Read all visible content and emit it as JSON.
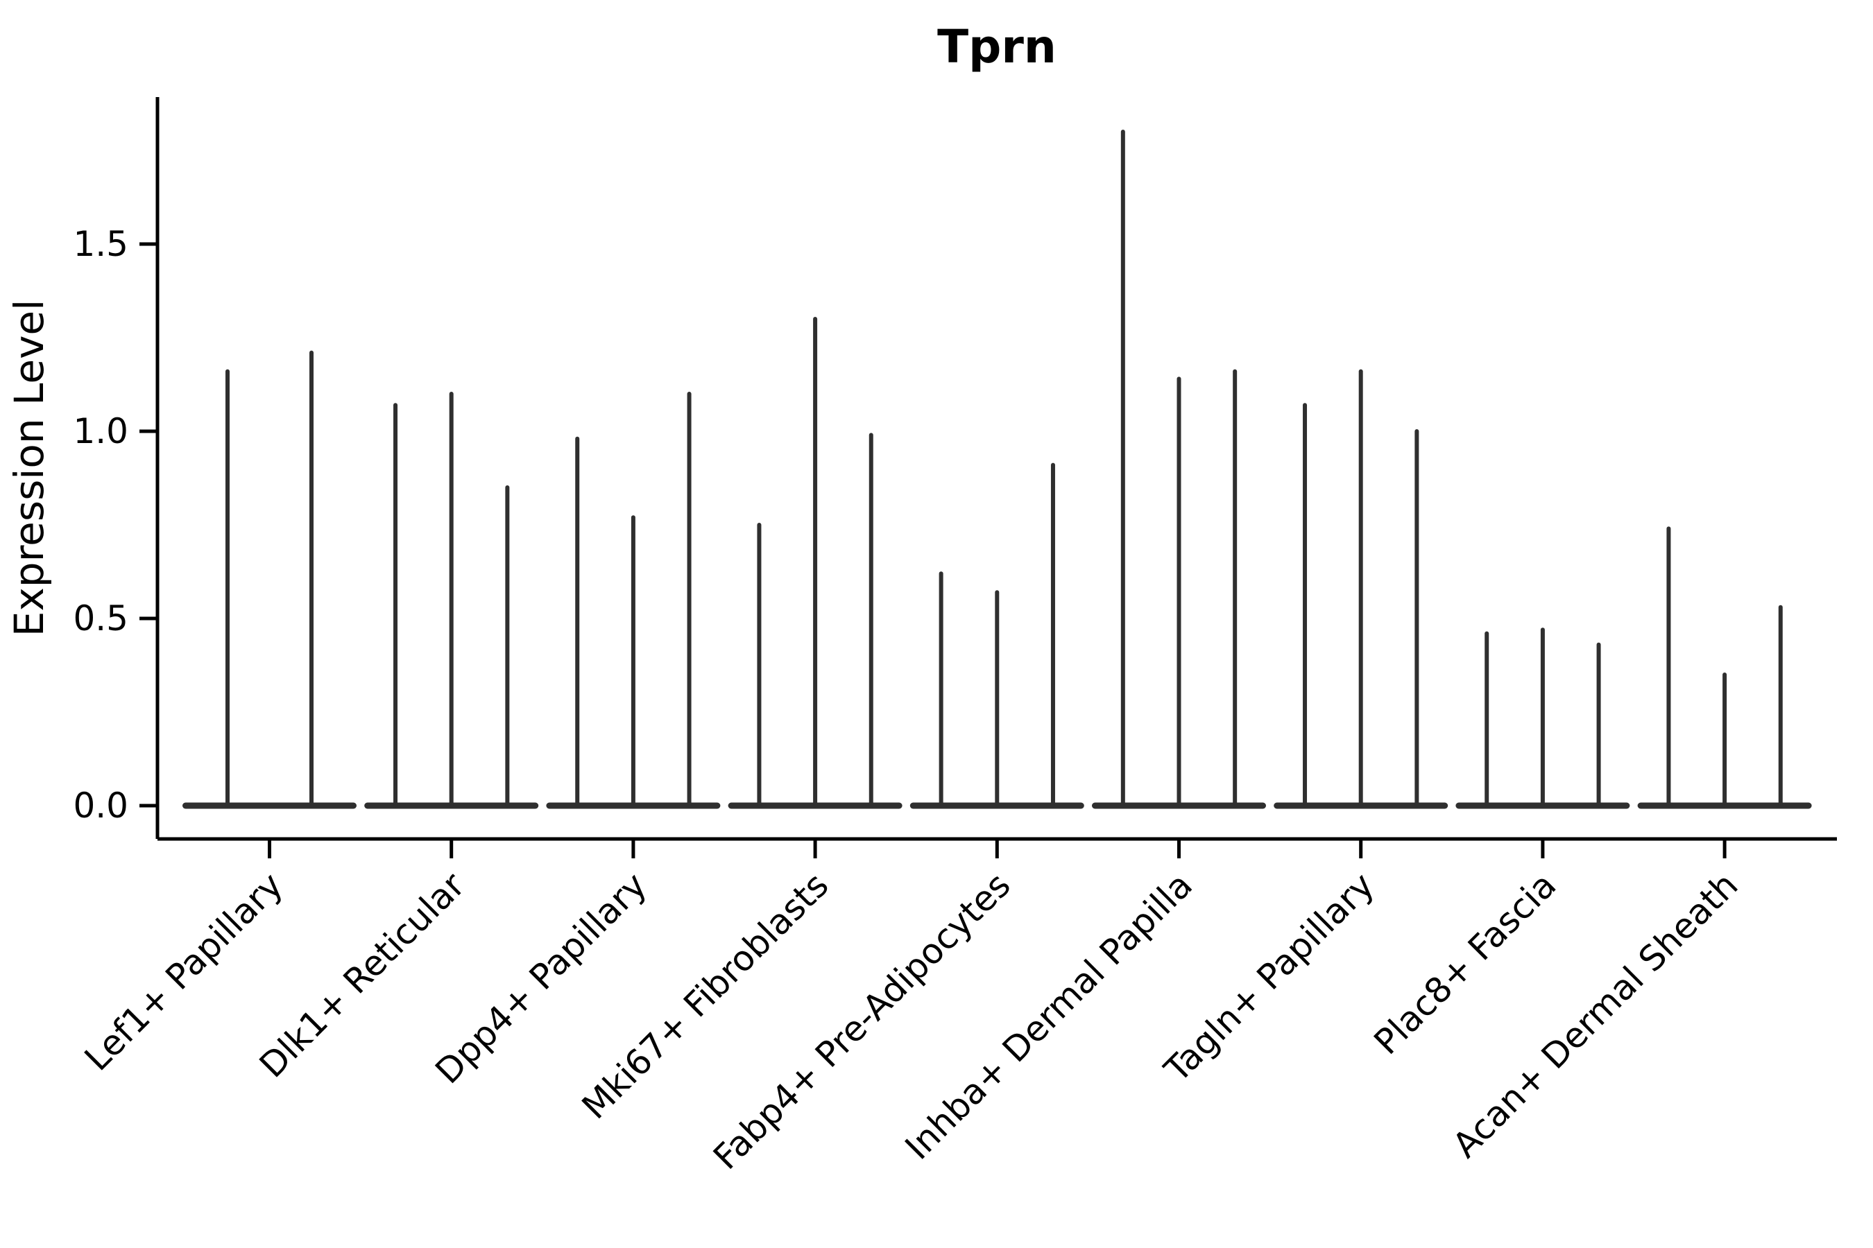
{
  "title": "Tprn",
  "colors": {
    "violin": "#2f2f2f",
    "axis": "#000000",
    "background": "#ffffff"
  },
  "chart_data": {
    "type": "violin",
    "title": "Tprn",
    "subtitle": "",
    "xlabel": "",
    "ylabel": "Expression Level",
    "ylim": [
      0,
      1.9
    ],
    "yticks": [
      "0.0",
      "0.5",
      "1.0",
      "1.5"
    ],
    "ytick_values": [
      0.0,
      0.5,
      1.0,
      1.5
    ],
    "grid": false,
    "legend_position": "none",
    "x_tick_label_rotation_deg": 45,
    "shape_note": "Needle-thin violins: density mass concentrated at 0 (flat wide base line) with a thin vertical tail reaching the maximum expression value; 2-3 violins per category group.",
    "categories": [
      "Lef1+ Papillary",
      "Dlk1+ Reticular",
      "Dpp4+ Papillary",
      "Mki67+ Fibroblasts",
      "Fabp4+ Pre-Adipocytes",
      "Inhba+ Dermal Papilla",
      "Tagln+ Papillary",
      "Plac8+ Fascia",
      "Acan+ Dermal Sheath"
    ],
    "groups": [
      {
        "label": "Lef1+ Papillary",
        "violin_peaks": [
          1.16,
          1.21
        ]
      },
      {
        "label": "Dlk1+ Reticular",
        "violin_peaks": [
          1.07,
          1.1,
          0.85
        ]
      },
      {
        "label": "Dpp4+ Papillary",
        "violin_peaks": [
          0.98,
          0.77,
          1.1
        ]
      },
      {
        "label": "Mki67+ Fibroblasts",
        "violin_peaks": [
          0.75,
          1.3,
          0.99
        ]
      },
      {
        "label": "Fabp4+ Pre-Adipocytes",
        "violin_peaks": [
          0.62,
          0.57,
          0.91
        ]
      },
      {
        "label": "Inhba+ Dermal Papilla",
        "violin_peaks": [
          1.8,
          1.14,
          1.16
        ]
      },
      {
        "label": "Tagln+ Papillary",
        "violin_peaks": [
          1.07,
          1.16,
          1.0
        ]
      },
      {
        "label": "Plac8+ Fascia",
        "violin_peaks": [
          0.46,
          0.47,
          0.43
        ]
      },
      {
        "label": "Acan+ Dermal Sheath",
        "violin_peaks": [
          0.74,
          0.35,
          0.53
        ]
      }
    ]
  }
}
